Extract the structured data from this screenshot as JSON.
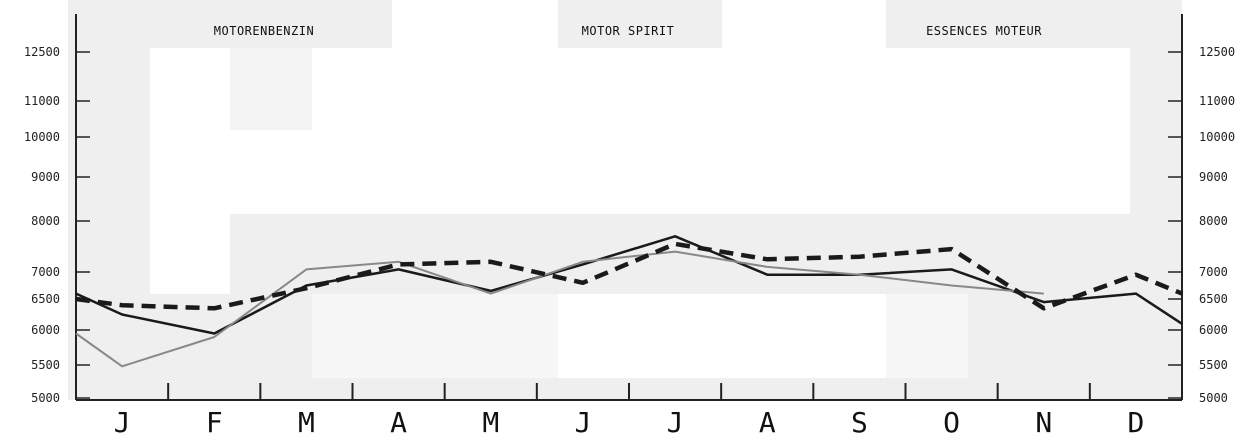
{
  "titles": [
    "MOTORENBENZIN",
    "MOTOR SPIRIT",
    "ESSENCES MOTEUR"
  ],
  "chart_data": {
    "type": "line",
    "title": "",
    "xlabel": "",
    "ylabel": "",
    "categories": [
      "J",
      "F",
      "M",
      "A",
      "M",
      "J",
      "J",
      "A",
      "S",
      "O",
      "N",
      "D"
    ],
    "y_ticks": [
      12500,
      11000,
      10000,
      9000,
      8000,
      7000,
      6500,
      6000,
      5500,
      5000
    ],
    "y_tick_labels_left": [
      "12500",
      "11000",
      "10000",
      "9000",
      "8000",
      "7000",
      "6500",
      "6000",
      "5500",
      "5000"
    ],
    "y_tick_labels_right": [
      "12500",
      "11000",
      "10000",
      "9000",
      "8000",
      "7000",
      "6500",
      "6000",
      "5500",
      "5000"
    ],
    "ylim": [
      5000,
      12500
    ],
    "series": [
      {
        "style": "solid-black",
        "color": "#1a1a1a",
        "x": [
          0.0,
          0.5,
          1.5,
          2.5,
          3.5,
          4.5,
          5.5,
          6.5,
          7.5,
          8.5,
          9.5,
          10.5,
          11.5,
          12.0
        ],
        "values": [
          6600,
          6250,
          5950,
          6750,
          7050,
          6650,
          7150,
          7700,
          6950,
          6950,
          7050,
          6450,
          6600,
          6100
        ]
      },
      {
        "style": "solid-gray",
        "color": "#888888",
        "x": [
          0.0,
          0.5,
          1.5,
          2.5,
          3.5,
          4.5,
          5.5,
          6.5,
          7.5,
          8.5,
          9.5,
          10.5
        ],
        "values": [
          5950,
          5480,
          5900,
          7050,
          7200,
          6600,
          7200,
          7400,
          7100,
          6950,
          6750,
          6600
        ]
      },
      {
        "style": "dashed-black",
        "color": "#1a1a1a",
        "x": [
          0.0,
          0.5,
          1.5,
          2.5,
          3.5,
          4.5,
          5.5,
          6.5,
          7.5,
          8.5,
          9.5,
          10.5,
          11.5,
          12.0
        ],
        "values": [
          6500,
          6400,
          6350,
          6700,
          7150,
          7200,
          6800,
          7550,
          7250,
          7300,
          7450,
          6350,
          6950,
          6600
        ]
      }
    ]
  }
}
